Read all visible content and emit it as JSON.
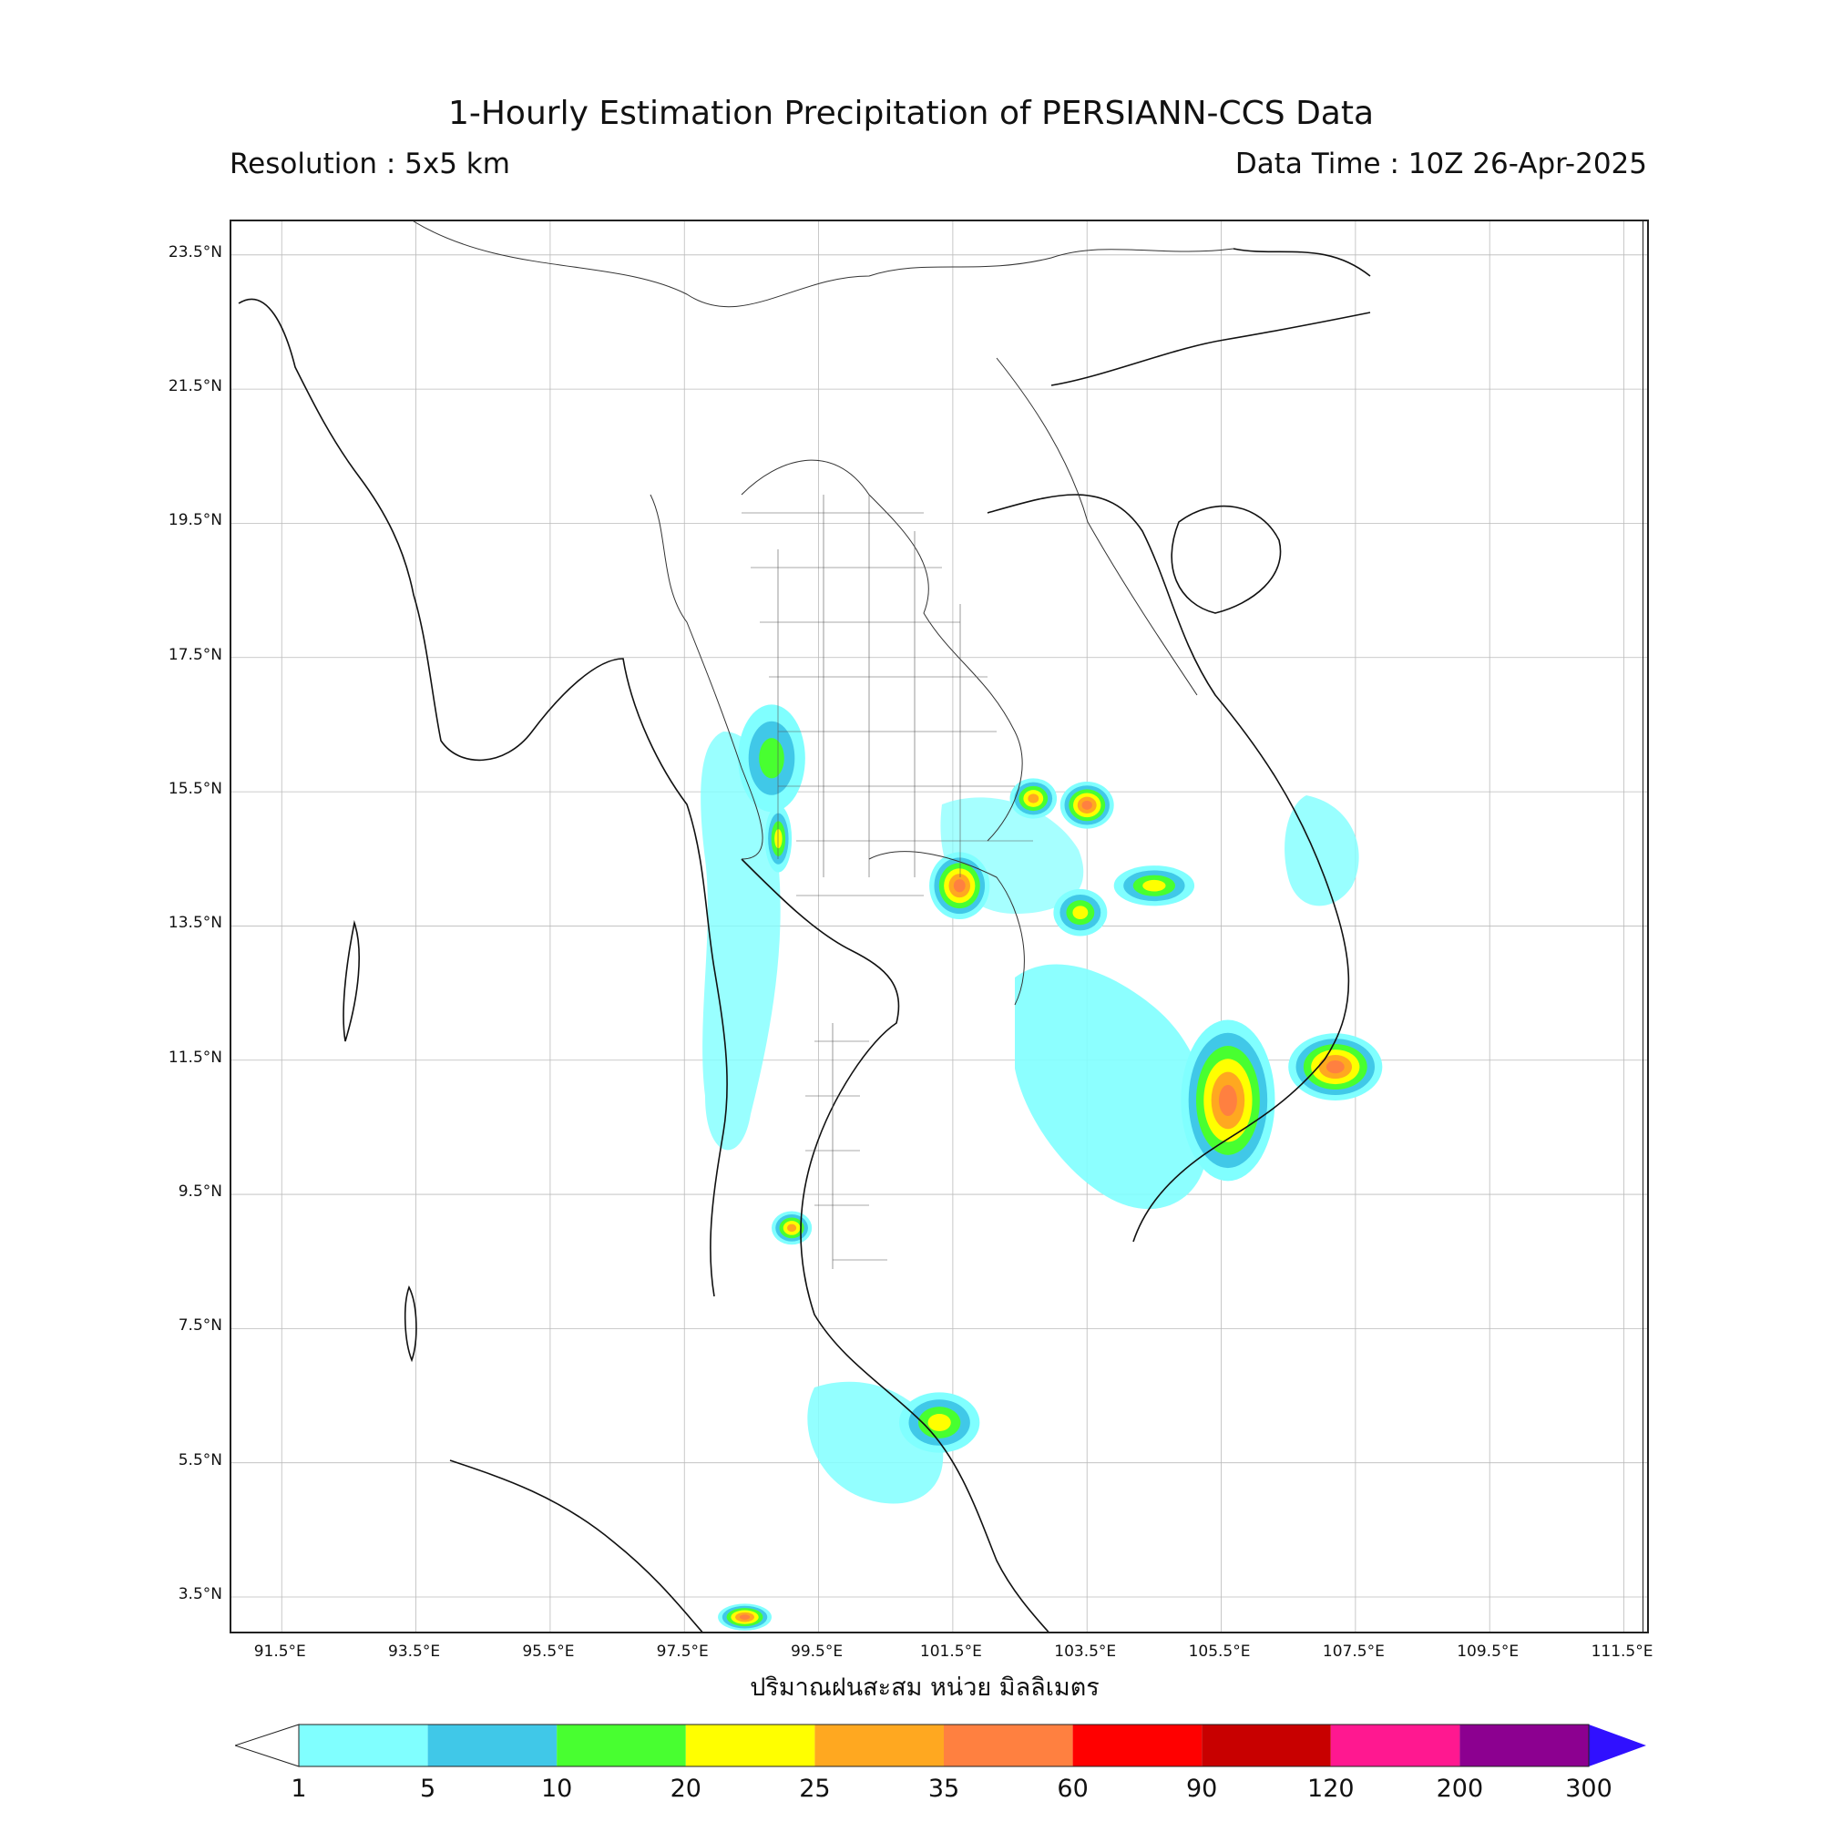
{
  "header": {
    "title": "1-Hourly Estimation Precipitation of PERSIANN-CCS Data",
    "resolution": "Resolution : 5x5 km",
    "data_time": "Data Time : 10Z 26-Apr-2025"
  },
  "axes": {
    "lat_labels": [
      "23.5°N",
      "21.5°N",
      "19.5°N",
      "17.5°N",
      "15.5°N",
      "13.5°N",
      "11.5°N",
      "9.5°N",
      "7.5°N",
      "5.5°N",
      "3.5°N"
    ],
    "lon_labels": [
      "91.5°E",
      "93.5°E",
      "95.5°E",
      "97.5°E",
      "99.5°E",
      "101.5°E",
      "103.5°E",
      "105.5°E",
      "107.5°E",
      "109.5°E",
      "111.5°E"
    ],
    "xlabel": "ปริมาณฝนสะสม หน่วย มิลลิเมตร"
  },
  "colorbar": {
    "ticks": [
      "1",
      "5",
      "10",
      "20",
      "25",
      "35",
      "60",
      "90",
      "120",
      "200",
      "300"
    ],
    "colors": [
      "#80ffff",
      "#40c8e8",
      "#48ff30",
      "#ffff00",
      "#ffa820",
      "#ff8040",
      "#ff0000",
      "#c80000",
      "#ff1890",
      "#8c0090"
    ],
    "over_color": "#3010ff"
  },
  "rain_cells": [
    {
      "lon": 98.8,
      "lat": 16.0,
      "rx": 0.5,
      "ry": 0.8,
      "level": 2
    },
    {
      "lon": 98.9,
      "lat": 14.8,
      "rx": 0.2,
      "ry": 0.5,
      "level": 3
    },
    {
      "lon": 101.6,
      "lat": 14.1,
      "rx": 0.45,
      "ry": 0.5,
      "level": 5
    },
    {
      "lon": 102.7,
      "lat": 15.4,
      "rx": 0.35,
      "ry": 0.3,
      "level": 4
    },
    {
      "lon": 103.5,
      "lat": 15.3,
      "rx": 0.4,
      "ry": 0.35,
      "level": 5
    },
    {
      "lon": 104.5,
      "lat": 14.1,
      "rx": 0.6,
      "ry": 0.3,
      "level": 3
    },
    {
      "lon": 103.4,
      "lat": 13.7,
      "rx": 0.4,
      "ry": 0.35,
      "level": 3
    },
    {
      "lon": 105.6,
      "lat": 10.9,
      "rx": 0.7,
      "ry": 1.2,
      "level": 5
    },
    {
      "lon": 107.2,
      "lat": 11.4,
      "rx": 0.7,
      "ry": 0.5,
      "level": 5
    },
    {
      "lon": 101.3,
      "lat": 6.1,
      "rx": 0.6,
      "ry": 0.45,
      "level": 3
    },
    {
      "lon": 98.4,
      "lat": 3.2,
      "rx": 0.4,
      "ry": 0.2,
      "level": 5
    },
    {
      "lon": 99.1,
      "lat": 9.0,
      "rx": 0.3,
      "ry": 0.25,
      "level": 4
    }
  ]
}
